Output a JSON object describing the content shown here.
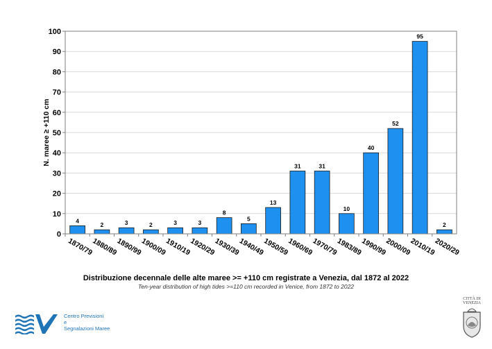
{
  "chart_data": {
    "type": "bar",
    "categories": [
      "1870/79",
      "1880/89",
      "1890/99",
      "1900/09",
      "1910/19",
      "1920/29",
      "1930/39",
      "1940/49",
      "1950/59",
      "1960/69",
      "1970/79",
      "1983/89",
      "1990/99",
      "2000/09",
      "2010/19",
      "2020/29"
    ],
    "values": [
      4,
      2,
      3,
      2,
      3,
      3,
      8,
      5,
      13,
      31,
      31,
      10,
      40,
      52,
      95,
      2
    ],
    "title": "Distribuzione decennale delle alte maree >= +110 cm registrate a Venezia, dal 1872 al 2022",
    "subtitle": "Ten-year distribution of high tides >=110 cm recorded in Venice, from 1872 to 2022",
    "ylabel": "N. maree ≥ +110 cm",
    "xlabel": "",
    "ylim": [
      0,
      100
    ],
    "yticks": [
      0,
      10,
      20,
      30,
      40,
      50,
      60,
      70,
      80,
      90,
      100
    ],
    "grid": true,
    "bar_color": "#1e90f0"
  },
  "logo": {
    "line1": "Centro Previsioni",
    "line2": "e",
    "line3": "Segnalazioni Maree"
  },
  "seal": {
    "line1": "CITTÀ DI",
    "line2": "VENEZIA"
  }
}
